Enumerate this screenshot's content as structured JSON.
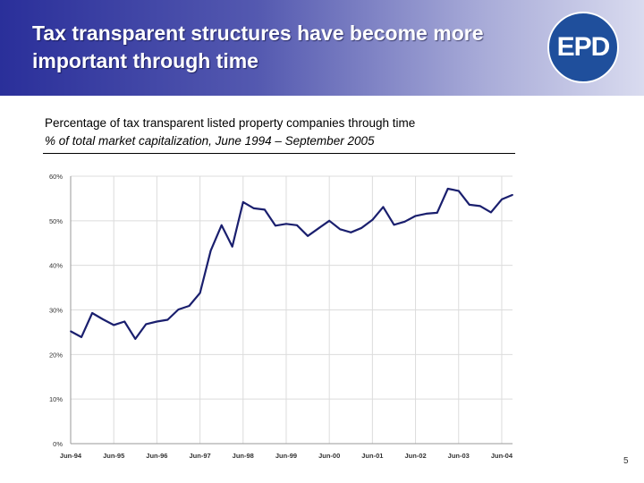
{
  "slide": {
    "title": "Tax transparent structures have become more important through time",
    "logo_text": "EPD",
    "subtitle": "Percentage of tax transparent listed property companies through time",
    "subtitle_italic": "% of total market capitalization, June 1994 – September 2005",
    "page_number": "5",
    "colors": {
      "header_start": "#2a2f9a",
      "header_end": "#d9dbef",
      "line": "#1a1f6e",
      "logo_bg": "#1f4f9c"
    }
  },
  "chart_data": {
    "type": "line",
    "title": "",
    "xlabel": "",
    "ylabel": "",
    "ylim": [
      0,
      60
    ],
    "grid": true,
    "legend": "none",
    "y_ticks": [
      "0%",
      "10%",
      "20%",
      "30%",
      "40%",
      "50%",
      "60%"
    ],
    "x_tick_labels": [
      "Jun-94",
      "Jun-95",
      "Jun-96",
      "Jun-97",
      "Jun-98",
      "Jun-99",
      "Jun-00",
      "Jun-01",
      "Jun-02",
      "Jun-03",
      "Jun-04"
    ],
    "series": [
      {
        "values": [
          {
            "x": 1994.5,
            "y": 25.2
          },
          {
            "x": 1994.75,
            "y": 23.9
          },
          {
            "x": 1995.0,
            "y": 29.3
          },
          {
            "x": 1995.25,
            "y": 27.9
          },
          {
            "x": 1995.5,
            "y": 26.6
          },
          {
            "x": 1995.75,
            "y": 27.4
          },
          {
            "x": 1996.0,
            "y": 23.5
          },
          {
            "x": 1996.25,
            "y": 26.8
          },
          {
            "x": 1996.5,
            "y": 27.4
          },
          {
            "x": 1996.75,
            "y": 27.8
          },
          {
            "x": 1997.0,
            "y": 30.1
          },
          {
            "x": 1997.25,
            "y": 30.9
          },
          {
            "x": 1997.5,
            "y": 33.8
          },
          {
            "x": 1997.75,
            "y": 43.3
          },
          {
            "x": 1998.0,
            "y": 49.0
          },
          {
            "x": 1998.25,
            "y": 44.2
          },
          {
            "x": 1998.5,
            "y": 54.2
          },
          {
            "x": 1998.75,
            "y": 52.8
          },
          {
            "x": 1999.0,
            "y": 52.5
          },
          {
            "x": 1999.25,
            "y": 48.9
          },
          {
            "x": 1999.5,
            "y": 49.3
          },
          {
            "x": 1999.75,
            "y": 49.0
          },
          {
            "x": 2000.0,
            "y": 46.6
          },
          {
            "x": 2000.25,
            "y": 48.3
          },
          {
            "x": 2000.5,
            "y": 50.0
          },
          {
            "x": 2000.75,
            "y": 48.1
          },
          {
            "x": 2001.0,
            "y": 47.4
          },
          {
            "x": 2001.25,
            "y": 48.4
          },
          {
            "x": 2001.5,
            "y": 50.2
          },
          {
            "x": 2001.75,
            "y": 53.1
          },
          {
            "x": 2002.0,
            "y": 49.1
          },
          {
            "x": 2002.25,
            "y": 49.8
          },
          {
            "x": 2002.5,
            "y": 51.1
          },
          {
            "x": 2002.75,
            "y": 51.6
          },
          {
            "x": 2003.0,
            "y": 51.8
          },
          {
            "x": 2003.25,
            "y": 57.2
          },
          {
            "x": 2003.5,
            "y": 56.7
          },
          {
            "x": 2003.75,
            "y": 53.6
          },
          {
            "x": 2004.0,
            "y": 53.3
          },
          {
            "x": 2004.25,
            "y": 51.9
          },
          {
            "x": 2004.5,
            "y": 54.8
          },
          {
            "x": 2004.75,
            "y": 55.8
          }
        ]
      }
    ]
  }
}
